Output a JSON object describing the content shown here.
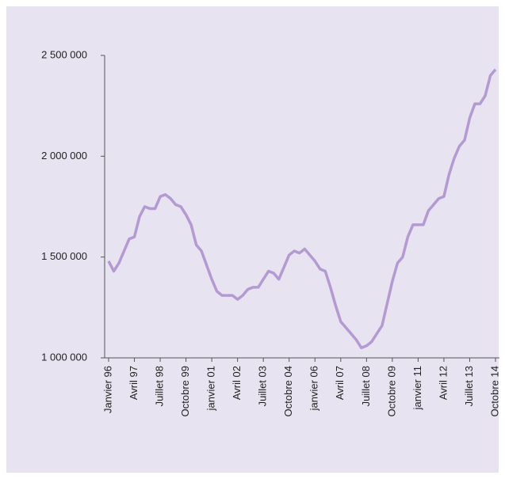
{
  "chart_data": {
    "type": "line",
    "categories": [
      "Janvier 96",
      null,
      null,
      null,
      null,
      "Avril 97",
      null,
      null,
      null,
      null,
      "Juillet 98",
      null,
      null,
      null,
      null,
      "Octobre 99",
      null,
      null,
      null,
      null,
      "janvier 01",
      null,
      null,
      null,
      null,
      "Avril 02",
      null,
      null,
      null,
      null,
      "Juillet 03",
      null,
      null,
      null,
      null,
      "Octobre 04",
      null,
      null,
      null,
      null,
      "janvier 06",
      null,
      null,
      null,
      null,
      "Avril 07",
      null,
      null,
      null,
      null,
      "Juillet 08",
      null,
      null,
      null,
      null,
      "Octobre 09",
      null,
      null,
      null,
      null,
      "janvier 11",
      null,
      null,
      null,
      null,
      "Avril 12",
      null,
      null,
      null,
      null,
      "Juillet 13",
      null,
      null,
      null,
      null,
      "Octobre 14"
    ],
    "values": [
      1480000,
      1430000,
      1470000,
      1530000,
      1590000,
      1600000,
      1700000,
      1750000,
      1740000,
      1740000,
      1800000,
      1810000,
      1790000,
      1760000,
      1750000,
      1710000,
      1660000,
      1560000,
      1530000,
      1460000,
      1390000,
      1330000,
      1310000,
      1310000,
      1310000,
      1290000,
      1310000,
      1340000,
      1350000,
      1350000,
      1390000,
      1430000,
      1420000,
      1390000,
      1450000,
      1510000,
      1530000,
      1520000,
      1540000,
      1510000,
      1480000,
      1440000,
      1430000,
      1350000,
      1260000,
      1180000,
      1150000,
      1120000,
      1090000,
      1050000,
      1060000,
      1080000,
      1120000,
      1160000,
      1270000,
      1380000,
      1470000,
      1500000,
      1600000,
      1660000,
      1660000,
      1660000,
      1730000,
      1760000,
      1790000,
      1800000,
      1910000,
      1990000,
      2050000,
      2080000,
      2190000,
      2260000,
      2260000,
      2300000,
      2400000,
      2430000
    ],
    "color": "#b39ad2",
    "ylim": [
      1000000,
      2500000
    ],
    "yticks": [
      {
        "value": 1000000,
        "label": "1 000 000"
      },
      {
        "value": 1500000,
        "label": "1 500 000"
      },
      {
        "value": 2000000,
        "label": "2 000 000"
      },
      {
        "value": 2500000,
        "label": "2 500 000"
      }
    ]
  }
}
